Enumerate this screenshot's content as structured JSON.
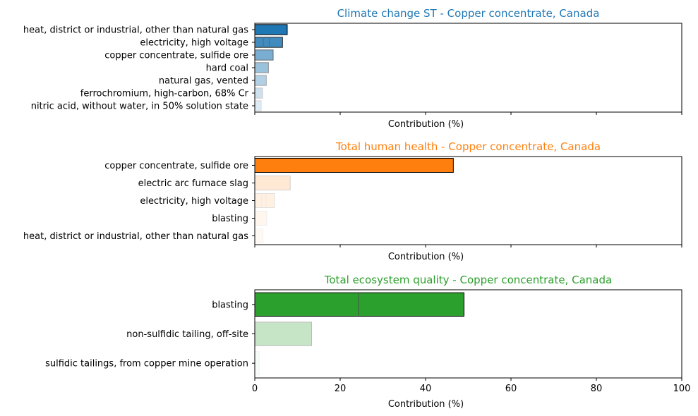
{
  "chart_data": [
    {
      "type": "bar",
      "orientation": "horizontal",
      "title": "Climate change ST - Copper concentrate, Canada",
      "title_color": "#1f77b4",
      "xlabel": "Contribution (%)",
      "xlim": [
        0,
        100
      ],
      "xticks": [
        0,
        20,
        40,
        60,
        80,
        100
      ],
      "show_tick_labels": false,
      "grid": false,
      "bar_color": "#1f77b4",
      "bars": [
        {
          "label": "heat, district or industrial, other than natural gas",
          "value": 7.6,
          "alpha": 1.0,
          "split": null
        },
        {
          "label": "electricity, high voltage",
          "value": 6.5,
          "alpha": 0.85,
          "split": [
            2.0,
            3.4
          ]
        },
        {
          "label": "copper concentrate, sulfide ore",
          "value": 4.3,
          "alpha": 0.6,
          "split": null
        },
        {
          "label": "hard coal",
          "value": 3.2,
          "alpha": 0.45,
          "split": null
        },
        {
          "label": "natural gas, vented",
          "value": 2.7,
          "alpha": 0.35,
          "split": null
        },
        {
          "label": "ferrochromium, high-carbon, 68% Cr",
          "value": 1.8,
          "alpha": 0.22,
          "split": null
        },
        {
          "label": "nitric acid, without water, in 50% solution state",
          "value": 1.5,
          "alpha": 0.15,
          "split": null
        }
      ]
    },
    {
      "type": "bar",
      "orientation": "horizontal",
      "title": "Total human health - Copper concentrate, Canada",
      "title_color": "#ff7f0e",
      "xlabel": "Contribution (%)",
      "xlim": [
        0,
        100
      ],
      "xticks": [
        0,
        20,
        40,
        60,
        80,
        100
      ],
      "show_tick_labels": false,
      "grid": false,
      "bar_color": "#ff7f0e",
      "bars": [
        {
          "label": "copper concentrate, sulfide ore",
          "value": 46.5,
          "alpha": 1.0,
          "split": null
        },
        {
          "label": "electric arc furnace slag",
          "value": 8.3,
          "alpha": 0.18,
          "split": null
        },
        {
          "label": "electricity, high voltage",
          "value": 4.6,
          "alpha": 0.12,
          "split": [
            1.6,
            2.6
          ]
        },
        {
          "label": "blasting",
          "value": 2.8,
          "alpha": 0.07,
          "split": null
        },
        {
          "label": "heat, district or industrial, other than natural gas",
          "value": 1.9,
          "alpha": 0.05,
          "split": null
        }
      ]
    },
    {
      "type": "bar",
      "orientation": "horizontal",
      "title": "Total ecosystem quality - Copper concentrate, Canada",
      "title_color": "#2ca02c",
      "xlabel": "Contribution (%)",
      "xlim": [
        0,
        100
      ],
      "xticks": [
        0,
        20,
        40,
        60,
        80,
        100
      ],
      "show_tick_labels": true,
      "grid": false,
      "bar_color": "#2ca02c",
      "bars": [
        {
          "label": "blasting",
          "value": 49.0,
          "alpha": 1.0,
          "split": [
            24.3
          ]
        },
        {
          "label": "non-sulfidic tailing, off-site",
          "value": 13.3,
          "alpha": 0.27,
          "split": null
        },
        {
          "label": "sulfidic tailings, from copper mine operation",
          "value": 1.1,
          "alpha": 0.04,
          "split": null
        }
      ]
    }
  ]
}
